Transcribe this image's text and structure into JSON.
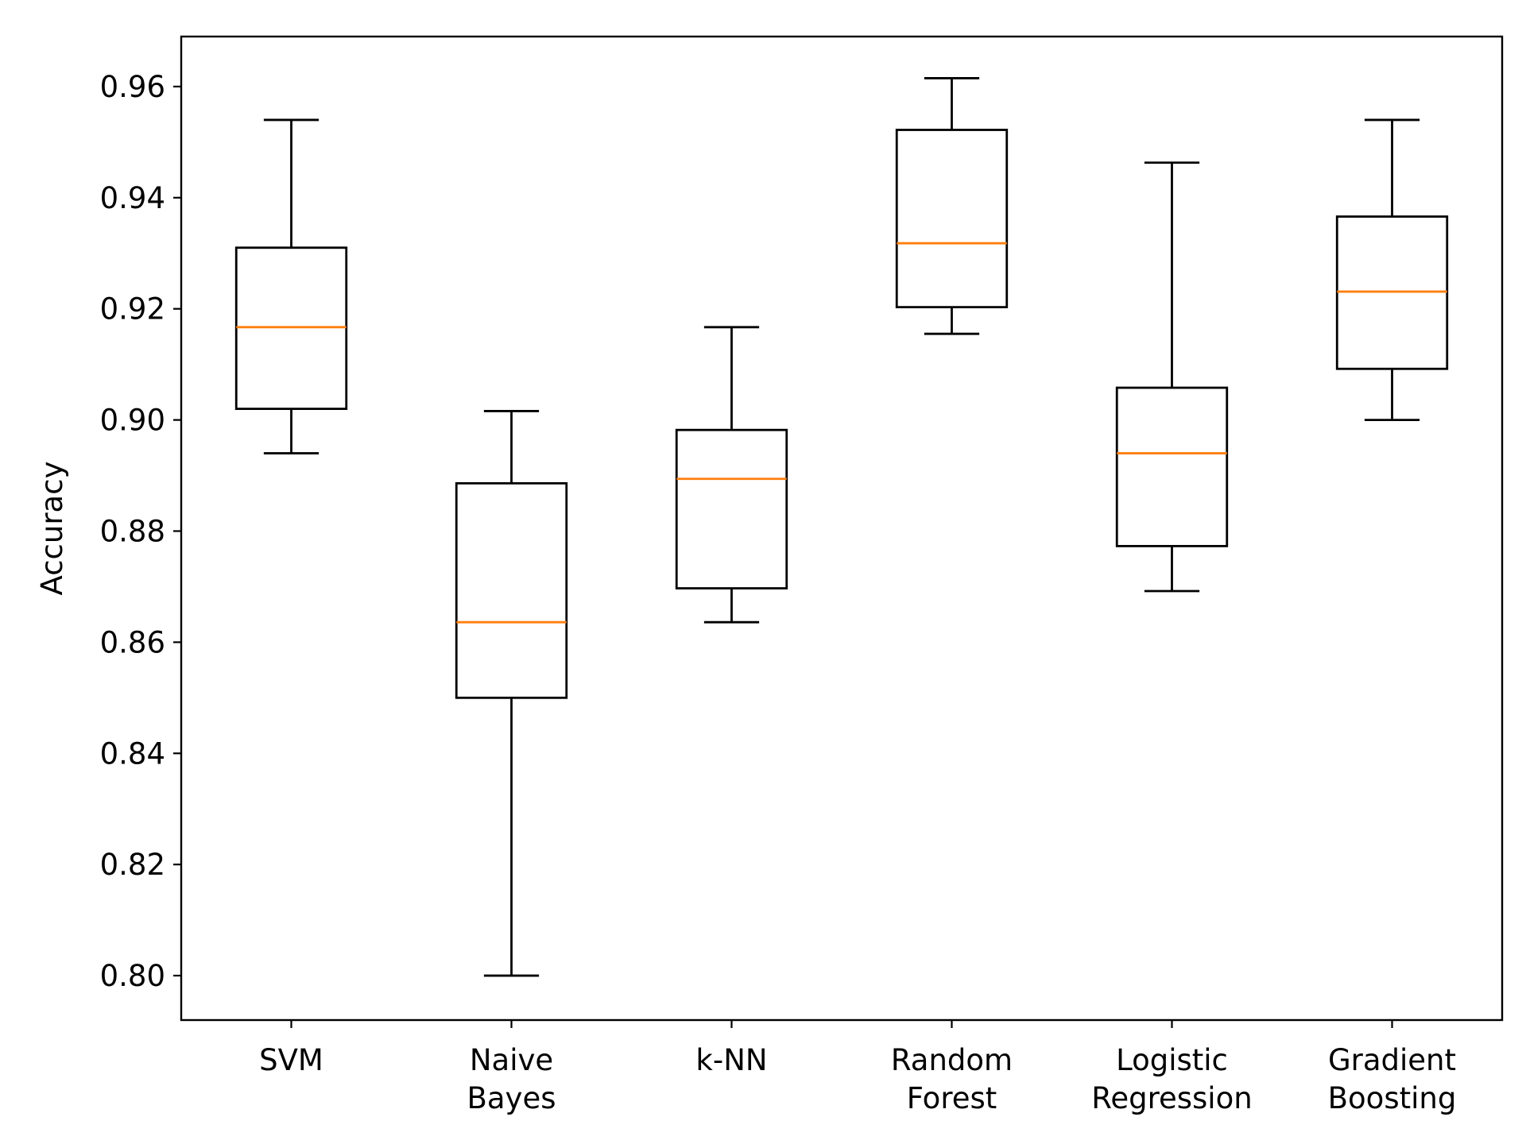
{
  "chart_data": {
    "type": "box",
    "title": "",
    "xlabel": "",
    "ylabel": "Accuracy",
    "ylim": [
      0.792,
      0.969
    ],
    "yticks": [
      "0.80",
      "0.82",
      "0.84",
      "0.86",
      "0.88",
      "0.90",
      "0.92",
      "0.94",
      "0.96"
    ],
    "grid": false,
    "categories": [
      [
        "SVM"
      ],
      [
        "Naive",
        "Bayes"
      ],
      [
        "k-NN"
      ],
      [
        "Random",
        "Forest"
      ],
      [
        "Logistic",
        "Regression"
      ],
      [
        "Gradient",
        "Boosting"
      ]
    ],
    "boxes": [
      {
        "whisker_low": 0.894,
        "q1": 0.902,
        "median": 0.9167,
        "q3": 0.931,
        "whisker_high": 0.954
      },
      {
        "whisker_low": 0.8,
        "q1": 0.85,
        "median": 0.8636,
        "q3": 0.8886,
        "whisker_high": 0.9016
      },
      {
        "whisker_low": 0.8636,
        "q1": 0.8697,
        "median": 0.8894,
        "q3": 0.8982,
        "whisker_high": 0.9167
      },
      {
        "whisker_low": 0.9155,
        "q1": 0.9203,
        "median": 0.9318,
        "q3": 0.9522,
        "whisker_high": 0.9615
      },
      {
        "whisker_low": 0.8692,
        "q1": 0.8773,
        "median": 0.894,
        "q3": 0.9058,
        "whisker_high": 0.9463
      },
      {
        "whisker_low": 0.9,
        "q1": 0.9092,
        "median": 0.9231,
        "q3": 0.9366,
        "whisker_high": 0.954
      }
    ],
    "colors": {
      "box": "#000000",
      "median": "#ff7f0e"
    }
  }
}
